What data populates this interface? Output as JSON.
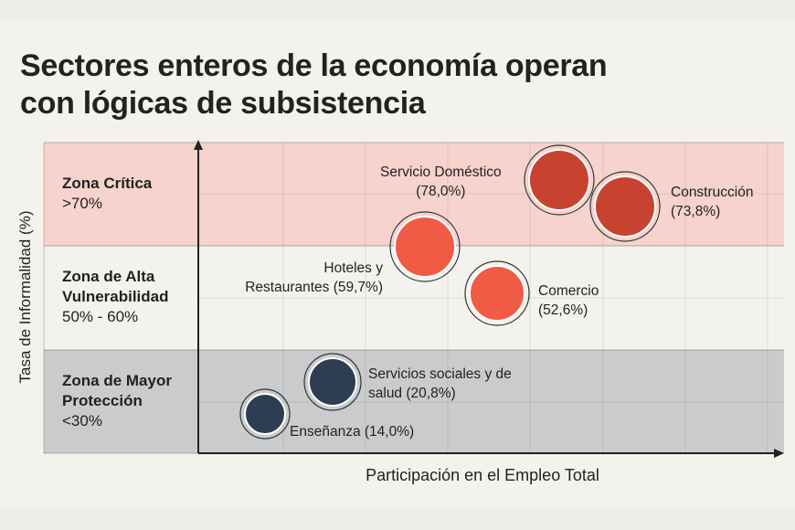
{
  "title_line1": "Sectores enteros de la economía operan",
  "title_line2": "con lógicas de subsistencia",
  "chart_data": {
    "type": "scatter",
    "title": "Sectores enteros de la economía operan con lógicas de subsistencia",
    "xlabel": "Participación en el Empleo Total",
    "ylabel": "Tasa de Informalidad (%)",
    "zones": [
      {
        "name": "Zona Crítica",
        "range": ">70%",
        "color": "#f6d3cd"
      },
      {
        "name_line1": "Zona de Alta",
        "name_line2": "Vulnerabilidad",
        "range": "50% - 60%",
        "color": "#f3f2ec"
      },
      {
        "name_line1": "Zona de Mayor",
        "name_line2": "Protección",
        "range": "<30%",
        "color": "#c9cbcd"
      }
    ],
    "points": [
      {
        "name": "Servicio Doméstico",
        "value_label": "(78,0%)",
        "informality": 78.0,
        "color": "#c8432f"
      },
      {
        "name": "Construcción",
        "value_label": "(73,8%)",
        "informality": 73.8,
        "color": "#c8432f"
      },
      {
        "name_line1": "Hoteles y",
        "name_line2": "Restaurantes (59,7%)",
        "informality": 59.7,
        "color": "#f15a45"
      },
      {
        "name": "Comercio",
        "value_label": "(52,6%)",
        "informality": 52.6,
        "color": "#f15a45"
      },
      {
        "name_line1": "Servicios sociales y de",
        "name_line2": "salud (20,8%)",
        "informality": 20.8,
        "color": "#2e3e52"
      },
      {
        "name": "Enseñanza (14,0%)",
        "informality": 14.0,
        "color": "#2e3e52"
      }
    ]
  }
}
